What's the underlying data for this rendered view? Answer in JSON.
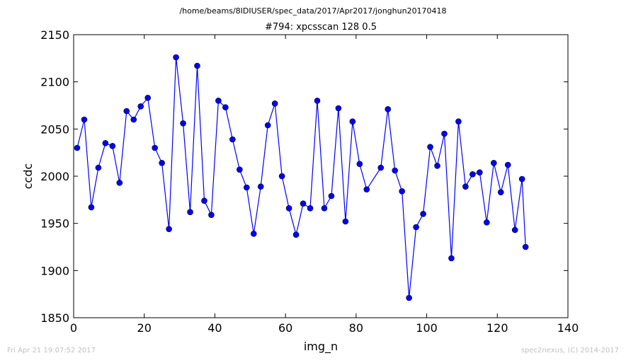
{
  "chart_data": {
    "type": "line",
    "suptitle": "/home/beams/8IDIUSER/spec_data/2017/Apr2017/jonghun20170418",
    "title": "#794: xpcsscan 128 0.5",
    "xlabel": "img_n",
    "ylabel": "ccdc",
    "xlim": [
      0,
      140
    ],
    "ylim": [
      1850,
      2150
    ],
    "xticks": [
      0,
      20,
      40,
      60,
      80,
      100,
      120,
      140
    ],
    "yticks": [
      1850,
      1900,
      1950,
      2000,
      2050,
      2100,
      2150
    ],
    "grid": false,
    "line_color": "#0000ff",
    "marker_color": "#0000ff",
    "series": [
      {
        "x": [
          1,
          3,
          5,
          7,
          9,
          11,
          13,
          15,
          17,
          19,
          21,
          23,
          25,
          27,
          29,
          31,
          33,
          35,
          37,
          39,
          41,
          43,
          45,
          47,
          49,
          51,
          53,
          55,
          57,
          59,
          61,
          63,
          65,
          67,
          69,
          71,
          73,
          75,
          77,
          79,
          81,
          83,
          87,
          89,
          91,
          93,
          95,
          97,
          99,
          101,
          103,
          105,
          107,
          109,
          111,
          113,
          115,
          117,
          119,
          121,
          123,
          125,
          127,
          128
        ],
        "values": [
          2030,
          2060,
          1967,
          2009,
          2035,
          2032,
          1993,
          2069,
          2060,
          2074,
          2083,
          2030,
          2014,
          1944,
          2126,
          2056,
          1962,
          2117,
          1974,
          1959,
          2080,
          2073,
          2039,
          2007,
          1988,
          1939,
          1989,
          2054,
          2077,
          2000,
          1966,
          1938,
          1971,
          1966,
          2080,
          1966,
          1979,
          2072,
          1952,
          2058,
          2013,
          1986,
          2009,
          2071,
          2006,
          1984,
          1871,
          1946,
          1960,
          2031,
          2011,
          2045,
          1913,
          2058,
          1989,
          2002,
          2004,
          1951,
          2014,
          1983,
          2012,
          1943,
          1997,
          1925
        ]
      }
    ]
  },
  "footer": {
    "left": "Fri Apr 21 19:07:52 2017",
    "right": "spec2nexus, (C) 2014-2017"
  }
}
